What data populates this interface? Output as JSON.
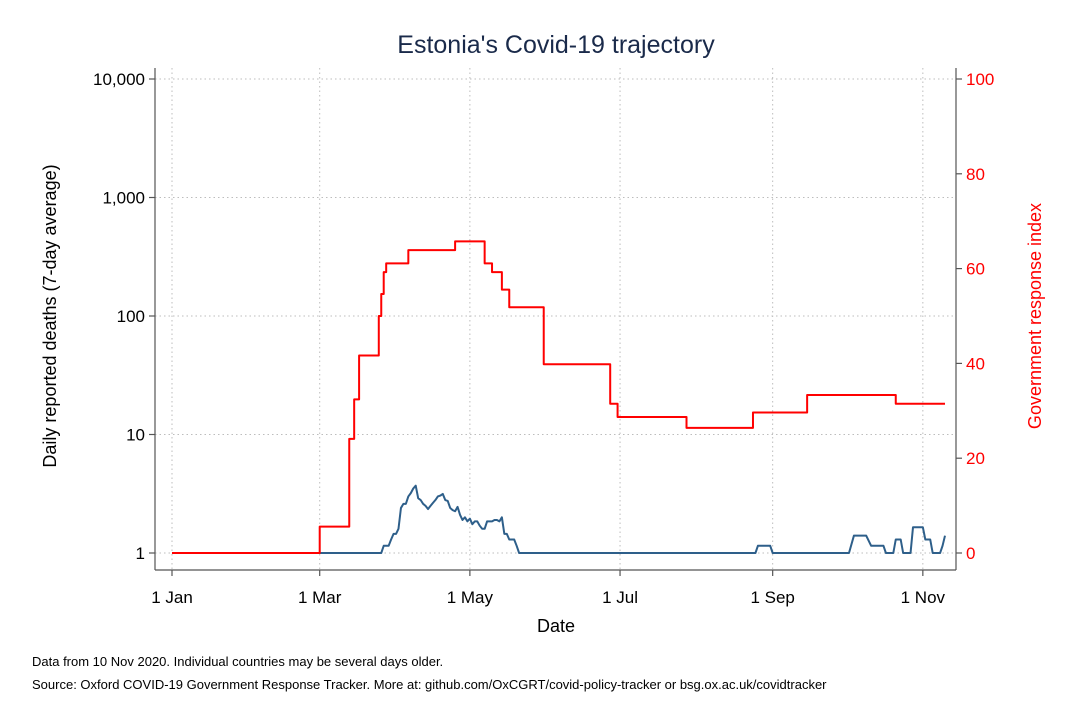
{
  "chart_data": {
    "type": "line",
    "title": "Estonia's Covid-19 trajectory",
    "xlabel": "Date",
    "ylabel_left": "Daily reported deaths (7-day average)",
    "ylabel_right": "Government response index",
    "x_range": [
      "2020-01-01",
      "2020-11-10"
    ],
    "x_ticks": [
      {
        "date": "2020-01-01",
        "label": "1 Jan"
      },
      {
        "date": "2020-03-01",
        "label": "1 Mar"
      },
      {
        "date": "2020-05-01",
        "label": "1 May"
      },
      {
        "date": "2020-07-01",
        "label": "1 Jul"
      },
      {
        "date": "2020-09-01",
        "label": "1 Sep"
      },
      {
        "date": "2020-11-01",
        "label": "1 Nov"
      }
    ],
    "left_axis": {
      "scale": "log",
      "ylim": [
        1,
        10000
      ],
      "ticks": [
        1,
        10,
        100,
        1000,
        10000
      ],
      "tick_labels": [
        "1",
        "10",
        "100",
        "1,000",
        "10,000"
      ]
    },
    "right_axis": {
      "scale": "linear",
      "ylim": [
        0,
        100
      ],
      "ticks": [
        0,
        20,
        40,
        60,
        80,
        100
      ],
      "tick_labels": [
        "0",
        "20",
        "40",
        "60",
        "80",
        "100"
      ],
      "color": "#ff0000"
    },
    "grid": true,
    "series": [
      {
        "axis": "left",
        "color": "#2e5f8a",
        "step": false,
        "points": [
          [
            "2020-01-01",
            1
          ],
          [
            "2020-03-26",
            1
          ],
          [
            "2020-03-27",
            1.15
          ],
          [
            "2020-03-29",
            1.15
          ],
          [
            "2020-03-30",
            1.3
          ],
          [
            "2020-03-31",
            1.45
          ],
          [
            "2020-04-01",
            1.45
          ],
          [
            "2020-04-02",
            1.6
          ],
          [
            "2020-04-03",
            2.4
          ],
          [
            "2020-04-04",
            2.6
          ],
          [
            "2020-04-05",
            2.6
          ],
          [
            "2020-04-06",
            3.0
          ],
          [
            "2020-04-07",
            3.2
          ],
          [
            "2020-04-08",
            3.5
          ],
          [
            "2020-04-09",
            3.7
          ],
          [
            "2020-04-10",
            2.9
          ],
          [
            "2020-04-11",
            2.8
          ],
          [
            "2020-04-12",
            2.6
          ],
          [
            "2020-04-13",
            2.5
          ],
          [
            "2020-04-14",
            2.35
          ],
          [
            "2020-04-15",
            2.5
          ],
          [
            "2020-04-16",
            2.65
          ],
          [
            "2020-04-17",
            2.8
          ],
          [
            "2020-04-18",
            3.0
          ],
          [
            "2020-04-19",
            3.05
          ],
          [
            "2020-04-20",
            3.15
          ],
          [
            "2020-04-21",
            2.8
          ],
          [
            "2020-04-22",
            2.75
          ],
          [
            "2020-04-23",
            2.4
          ],
          [
            "2020-04-24",
            2.3
          ],
          [
            "2020-04-25",
            2.25
          ],
          [
            "2020-04-26",
            2.45
          ],
          [
            "2020-04-27",
            2.1
          ],
          [
            "2020-04-28",
            1.9
          ],
          [
            "2020-04-29",
            2.0
          ],
          [
            "2020-04-30",
            1.85
          ],
          [
            "2020-05-01",
            1.95
          ],
          [
            "2020-05-02",
            1.75
          ],
          [
            "2020-05-03",
            1.85
          ],
          [
            "2020-05-04",
            1.85
          ],
          [
            "2020-05-05",
            1.7
          ],
          [
            "2020-05-06",
            1.6
          ],
          [
            "2020-05-07",
            1.6
          ],
          [
            "2020-05-08",
            1.85
          ],
          [
            "2020-05-09",
            1.85
          ],
          [
            "2020-05-10",
            1.85
          ],
          [
            "2020-05-11",
            1.9
          ],
          [
            "2020-05-12",
            1.9
          ],
          [
            "2020-05-13",
            1.85
          ],
          [
            "2020-05-14",
            2.0
          ],
          [
            "2020-05-15",
            1.45
          ],
          [
            "2020-05-16",
            1.45
          ],
          [
            "2020-05-17",
            1.3
          ],
          [
            "2020-05-18",
            1.3
          ],
          [
            "2020-05-19",
            1.3
          ],
          [
            "2020-05-20",
            1.15
          ],
          [
            "2020-05-21",
            1
          ],
          [
            "2020-08-25",
            1
          ],
          [
            "2020-08-26",
            1.15
          ],
          [
            "2020-08-31",
            1.15
          ],
          [
            "2020-09-01",
            1
          ],
          [
            "2020-10-02",
            1
          ],
          [
            "2020-10-04",
            1.4
          ],
          [
            "2020-10-09",
            1.4
          ],
          [
            "2020-10-11",
            1.15
          ],
          [
            "2020-10-16",
            1.15
          ],
          [
            "2020-10-17",
            1
          ],
          [
            "2020-10-20",
            1
          ],
          [
            "2020-10-21",
            1.3
          ],
          [
            "2020-10-23",
            1.3
          ],
          [
            "2020-10-24",
            1
          ],
          [
            "2020-10-27",
            1
          ],
          [
            "2020-10-28",
            1.65
          ],
          [
            "2020-11-01",
            1.65
          ],
          [
            "2020-11-02",
            1.3
          ],
          [
            "2020-11-04",
            1.3
          ],
          [
            "2020-11-05",
            1
          ],
          [
            "2020-11-08",
            1
          ],
          [
            "2020-11-09",
            1.15
          ],
          [
            "2020-11-10",
            1.4
          ]
        ]
      },
      {
        "axis": "right",
        "color": "#ff0000",
        "step": true,
        "points": [
          [
            "2020-01-01",
            0
          ],
          [
            "2020-03-01",
            5.56
          ],
          [
            "2020-03-13",
            24.07
          ],
          [
            "2020-03-15",
            32.41
          ],
          [
            "2020-03-17",
            41.67
          ],
          [
            "2020-03-25",
            50.0
          ],
          [
            "2020-03-26",
            54.63
          ],
          [
            "2020-03-27",
            59.26
          ],
          [
            "2020-03-28",
            61.11
          ],
          [
            "2020-04-06",
            63.89
          ],
          [
            "2020-04-25",
            65.74
          ],
          [
            "2020-05-07",
            61.11
          ],
          [
            "2020-05-10",
            59.26
          ],
          [
            "2020-05-14",
            55.56
          ],
          [
            "2020-05-17",
            51.85
          ],
          [
            "2020-05-31",
            39.81
          ],
          [
            "2020-06-27",
            31.48
          ],
          [
            "2020-06-30",
            28.7
          ],
          [
            "2020-07-28",
            26.39
          ],
          [
            "2020-08-24",
            29.63
          ],
          [
            "2020-09-15",
            33.33
          ],
          [
            "2020-10-21",
            31.48
          ],
          [
            "2020-11-10",
            31.48
          ]
        ]
      }
    ]
  },
  "footnote_1": "Data from 10 Nov 2020. Individual countries may be several days older.",
  "footnote_2": "Source: Oxford COVID-19 Government Response Tracker. More at: github.com/OxCGRT/covid-policy-tracker or bsg.ox.ac.uk/covidtracker"
}
